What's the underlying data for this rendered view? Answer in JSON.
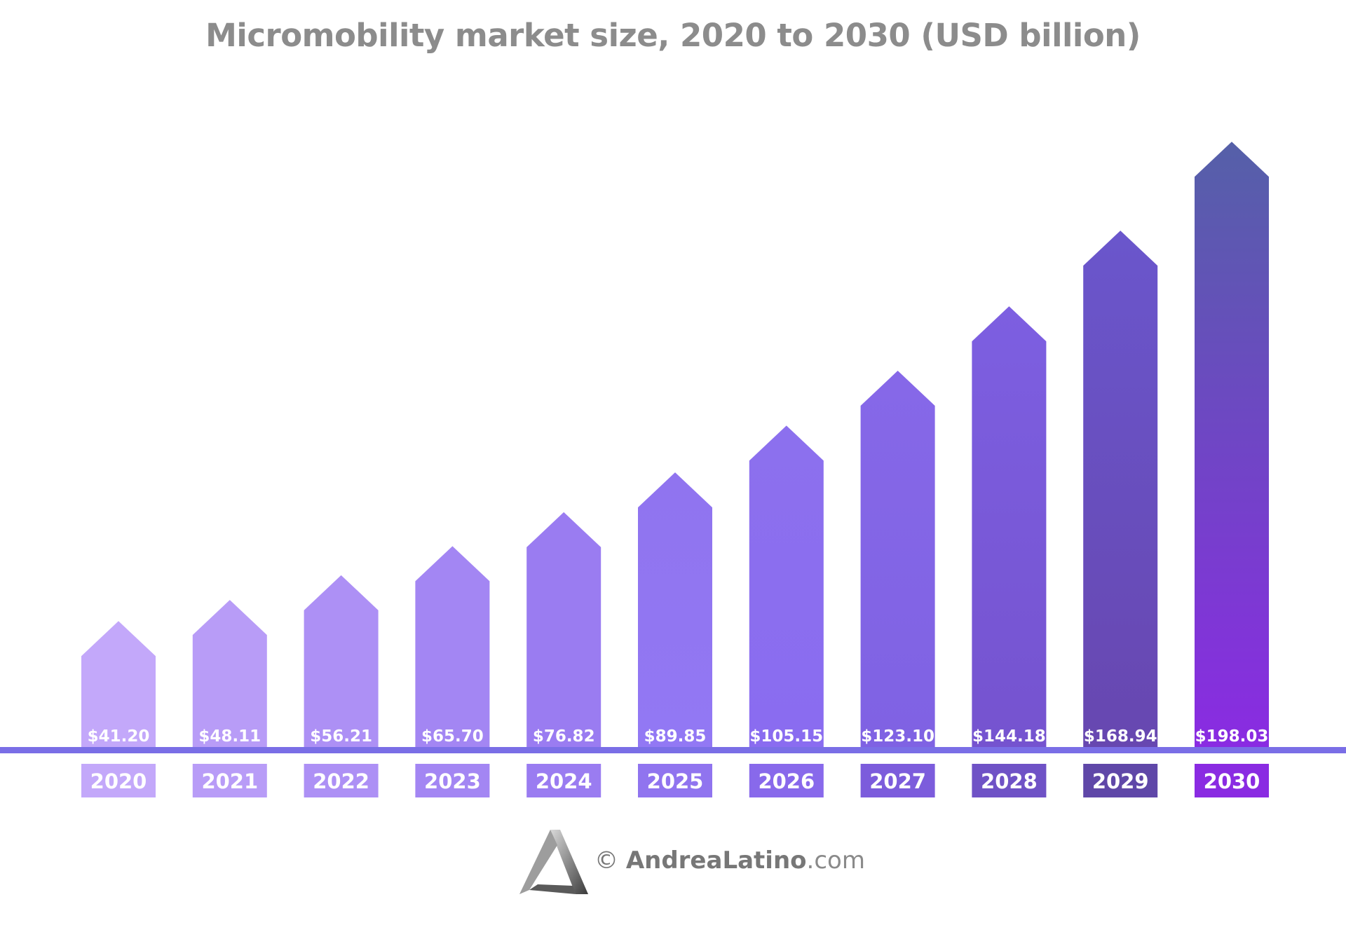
{
  "chart_data": {
    "type": "bar",
    "title": "Micromobility market size, 2020 to 2030 (USD billion)",
    "xlabel": "",
    "ylabel": "",
    "categories": [
      "2020",
      "2021",
      "2022",
      "2023",
      "2024",
      "2025",
      "2026",
      "2027",
      "2028",
      "2029",
      "2030"
    ],
    "values": [
      41.2,
      48.11,
      56.21,
      65.7,
      76.82,
      89.85,
      105.15,
      123.1,
      144.18,
      168.94,
      198.03
    ],
    "value_labels": [
      "$41.20",
      "$48.11",
      "$56.21",
      "$65.70",
      "$76.82",
      "$89.85",
      "$105.15",
      "$123.10",
      "$144.18",
      "$168.94",
      "$198.03"
    ],
    "ylim": [
      0,
      210
    ],
    "grid": false,
    "legend": "none",
    "bar_shape": "arrow",
    "colors": {
      "bar_top": [
        "#c3a8fa",
        "#b89cf7",
        "#ad90f5",
        "#a386f3",
        "#9a7cf1",
        "#9074ef",
        "#8c70ee",
        "#8668e8",
        "#7d5fe1",
        "#6a56cc",
        "#5560a8"
      ],
      "bar_bottom": [
        "#c3a8fa",
        "#b89cf7",
        "#ad90f5",
        "#a386f3",
        "#9a7cf1",
        "#9278f4",
        "#8a6cf0",
        "#7f62e3",
        "#7553cf",
        "#6747b0",
        "#8a2be2"
      ],
      "year_box": [
        "#c3a8fa",
        "#b89cf7",
        "#ad90f5",
        "#a386f3",
        "#9a7cf1",
        "#9074ef",
        "#8869eb",
        "#7c5cdc",
        "#6f52c6",
        "#5f47a8",
        "#8a2be2"
      ],
      "baseline": "#7a6ee6"
    }
  },
  "footer": {
    "copyright_symbol": "©",
    "brand": "AndreaLatino",
    "tld": ".com"
  }
}
